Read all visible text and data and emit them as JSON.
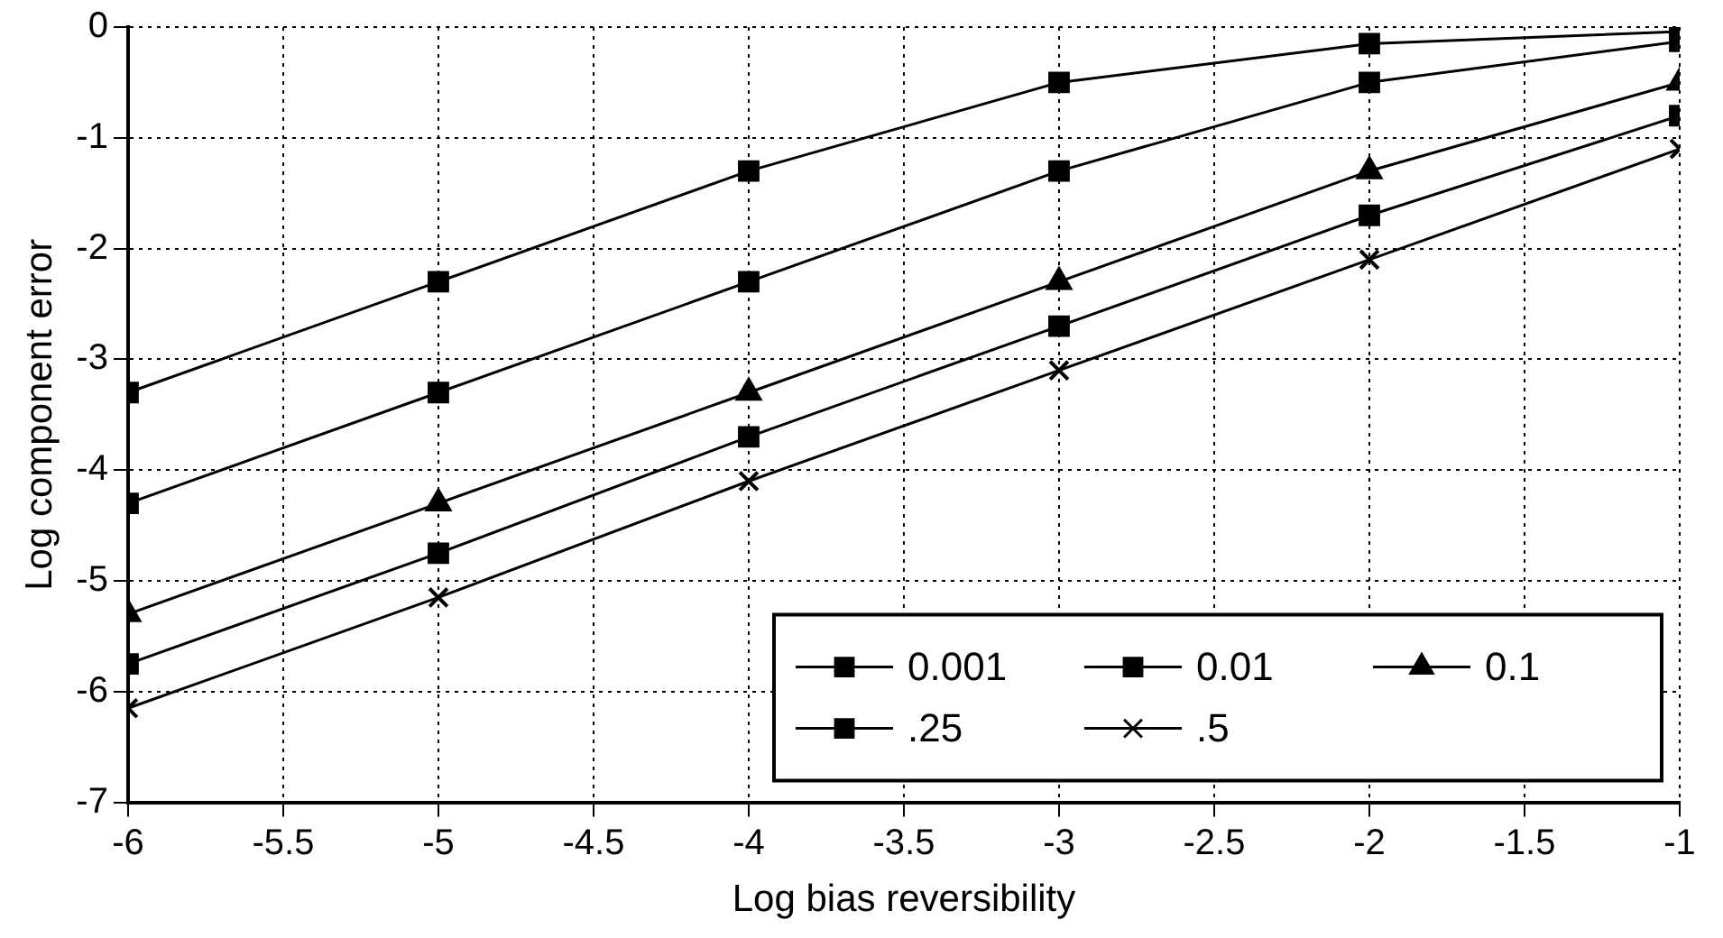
{
  "chart_data": {
    "type": "line",
    "xlabel": "Log bias reversibility",
    "ylabel": "Log component error",
    "xlim": [
      -6,
      -1
    ],
    "xticks": [
      -6,
      -5.5,
      -5,
      -4.5,
      -4,
      -3.5,
      -3,
      -2.5,
      -2,
      -1.5,
      -1
    ],
    "ylim": [
      -7,
      0
    ],
    "yticks": [
      -7,
      -6,
      -5,
      -4,
      -3,
      -2,
      -1,
      0
    ],
    "x": [
      -6,
      -5,
      -4,
      -3,
      -2,
      -1
    ],
    "grid": true,
    "legend": "bottom right",
    "line_style": "solid",
    "series": [
      {
        "name": "0.001",
        "color": "#000000",
        "marker": "square",
        "values": [
          -3.3,
          -2.3,
          -1.3,
          -0.5,
          -0.15,
          -0.04
        ]
      },
      {
        "name": "0.01",
        "color": "#000000",
        "marker": "square",
        "values": [
          -4.3,
          -3.3,
          -2.3,
          -1.3,
          -0.5,
          -0.13
        ]
      },
      {
        "name": "0.1",
        "color": "#000000",
        "marker": "triangle",
        "values": [
          -5.3,
          -4.3,
          -3.3,
          -2.3,
          -1.3,
          -0.5
        ]
      },
      {
        "name": ".25",
        "color": "#000000",
        "marker": "square",
        "values": [
          -5.75,
          -4.75,
          -3.7,
          -2.7,
          -1.7,
          -0.8
        ]
      },
      {
        "name": ".5",
        "color": "#000000",
        "marker": "cross",
        "values": [
          -6.15,
          -5.15,
          -4.1,
          -3.1,
          -2.1,
          -1.1
        ]
      }
    ]
  }
}
